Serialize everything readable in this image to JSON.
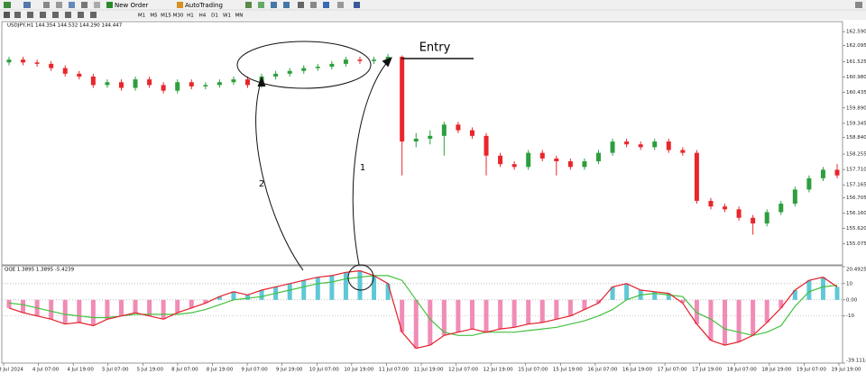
{
  "toolbar": {
    "new_order": "New Order",
    "auto_trading": "AutoTrading",
    "timeframes": [
      "M1",
      "M5",
      "M15",
      "M30",
      "H1",
      "H4",
      "D1",
      "W1",
      "MN"
    ]
  },
  "chart_data": [
    {
      "type": "candlestick",
      "title": "USDJPY,H1 144.354 144.532 144.290 144.447",
      "open": [
        161.5,
        161.6,
        161.5,
        161.45,
        161.3,
        161.1,
        161.0,
        160.7,
        160.8,
        160.6,
        160.9,
        160.7,
        160.5,
        160.8,
        160.65,
        160.7,
        160.8,
        160.9,
        160.7,
        161.0,
        161.1,
        161.2,
        161.3,
        161.35,
        161.45,
        161.6,
        161.55,
        161.6,
        161.7,
        158.7,
        158.8,
        158.9,
        159.3,
        159.1,
        158.9,
        158.2,
        157.9,
        157.8,
        158.3,
        158.1,
        158.0,
        157.8,
        158.0,
        158.3,
        158.7,
        158.6,
        158.5,
        158.7,
        158.4,
        158.3,
        156.6,
        156.4,
        156.3,
        156.0,
        155.8,
        156.2,
        156.5,
        157.0,
        157.4,
        157.7
      ],
      "high": [
        161.7,
        161.7,
        161.6,
        161.55,
        161.4,
        161.2,
        161.1,
        160.9,
        160.9,
        161.0,
        161.0,
        160.8,
        160.9,
        160.9,
        160.8,
        160.9,
        161.0,
        161.0,
        161.1,
        161.2,
        161.3,
        161.4,
        161.45,
        161.55,
        161.7,
        161.7,
        161.7,
        161.8,
        161.75,
        159.0,
        159.1,
        159.4,
        159.4,
        159.2,
        159.0,
        158.3,
        158.0,
        158.4,
        158.4,
        158.2,
        158.1,
        158.1,
        158.4,
        158.8,
        158.8,
        158.7,
        158.8,
        158.8,
        158.5,
        158.4,
        156.7,
        156.5,
        156.4,
        156.1,
        156.3,
        156.6,
        157.1,
        157.5,
        157.8,
        157.9
      ],
      "low": [
        161.4,
        161.4,
        161.35,
        161.2,
        161.0,
        160.9,
        160.6,
        160.6,
        160.5,
        160.5,
        160.6,
        160.4,
        160.4,
        160.55,
        160.55,
        160.6,
        160.7,
        160.6,
        160.6,
        160.9,
        161.0,
        161.1,
        161.2,
        161.25,
        161.35,
        161.45,
        161.45,
        161.5,
        157.5,
        158.5,
        158.6,
        158.2,
        159.0,
        158.8,
        157.5,
        157.8,
        157.7,
        157.7,
        158.0,
        157.5,
        157.7,
        157.7,
        157.9,
        158.2,
        158.5,
        158.4,
        158.4,
        158.3,
        158.2,
        156.5,
        156.3,
        156.2,
        155.9,
        155.4,
        155.7,
        156.1,
        156.4,
        156.9,
        157.3,
        157.4
      ],
      "close": [
        161.6,
        161.5,
        161.45,
        161.3,
        161.1,
        161.0,
        160.7,
        160.8,
        160.6,
        160.9,
        160.7,
        160.5,
        160.8,
        160.65,
        160.7,
        160.8,
        160.9,
        160.7,
        161.0,
        161.1,
        161.2,
        161.3,
        161.35,
        161.45,
        161.6,
        161.55,
        161.6,
        161.7,
        158.7,
        158.8,
        158.9,
        159.3,
        159.1,
        158.9,
        158.2,
        157.9,
        157.8,
        158.3,
        158.1,
        158.0,
        157.8,
        158.0,
        158.3,
        158.7,
        158.6,
        158.5,
        158.7,
        158.4,
        158.3,
        156.6,
        156.4,
        156.3,
        156.0,
        155.8,
        156.2,
        156.5,
        157.0,
        157.4,
        157.7,
        157.5
      ],
      "up_color": "#2e9e3e",
      "down_color": "#e8262b",
      "ylim": [
        154.365,
        162.945
      ],
      "yticks": [
        {
          "value": 162.59,
          "label": "162.590"
        },
        162.095,
        161.525,
        {
          "value": 160.98,
          "label": "160.980"
        },
        160.435,
        {
          "value": 159.89,
          "label": "159.890"
        },
        159.345,
        {
          "value": 158.84,
          "label": "158.840"
        },
        158.255,
        {
          "value": 157.71,
          "label": "157.710"
        },
        157.165,
        156.705,
        {
          "value": 156.16,
          "label": "156.160"
        },
        {
          "value": 155.62,
          "label": "155.620"
        },
        155.075
      ],
      "annotations": {
        "entry": "Entry",
        "arrow_1": "1",
        "arrow_2": "2"
      },
      "time_labels": [
        "3 Jul 2024",
        "4 Jul 07:00",
        "4 Jul 19:00",
        "5 Jul 07:00",
        "5 Jul 19:00",
        "8 Jul 07:00",
        "8 Jul 19:00",
        "9 Jul 07:00",
        "9 Jul 19:00",
        "10 Jul 07:00",
        "10 Jul 19:00",
        "11 Jul 07:00",
        "11 Jul 19:00",
        "12 Jul 07:00",
        "12 Jul 19:00",
        "15 Jul 07:00",
        "15 Jul 19:00",
        "16 Jul 07:00",
        "16 Jul 19:00",
        "17 Jul 07:00",
        "17 Jul 19:00",
        "18 Jul 07:00",
        "18 Jul 19:00",
        "19 Jul 07:00",
        "19 Jul 19:00"
      ]
    },
    {
      "type": "qqe",
      "title": "QQE 1.3895 1.3895 -5.4239",
      "histogram": {
        "positive_color": "#5ec8d6",
        "negative_color": "#f08cb6",
        "values": [
          -5,
          -8,
          -10,
          -12,
          -15,
          -14,
          -16,
          -12,
          -10,
          -8,
          -10,
          -12,
          -8,
          -5,
          -2,
          2,
          5,
          3,
          6,
          8,
          10,
          12,
          14,
          15,
          17,
          18,
          15,
          10,
          -20,
          -30,
          -28,
          -22,
          -20,
          -18,
          -20,
          -18,
          -17,
          -15,
          -14,
          -12,
          -10,
          -6,
          -2,
          8,
          10,
          6,
          5,
          4,
          -2,
          -15,
          -25,
          -28,
          -26,
          -22,
          -14,
          -5,
          6,
          12,
          14,
          8
        ]
      },
      "fast_color": "#e3202a",
      "slow": {
        "color": "#44c040",
        "values": [
          -2,
          -3,
          -5,
          -7,
          -9,
          -10,
          -11,
          -11,
          -10,
          -9,
          -9,
          -9,
          -9,
          -8,
          -6,
          -3,
          0,
          1,
          2,
          4,
          6,
          8,
          10,
          11,
          13,
          14,
          15,
          15,
          12,
          0,
          -12,
          -20,
          -22,
          -22,
          -20,
          -20,
          -20,
          -19,
          -18,
          -17,
          -15,
          -13,
          -10,
          -6,
          0,
          3,
          4,
          3,
          2,
          -8,
          -12,
          -18,
          -20,
          -22,
          -20,
          -16,
          -4,
          5,
          8,
          9
        ]
      },
      "ylim": [
        -39.1114,
        20.4925
      ],
      "yticks": [
        20.4925,
        10,
        {
          "value": 0,
          "label": "0.00"
        },
        -10,
        -39.1114
      ]
    }
  ]
}
